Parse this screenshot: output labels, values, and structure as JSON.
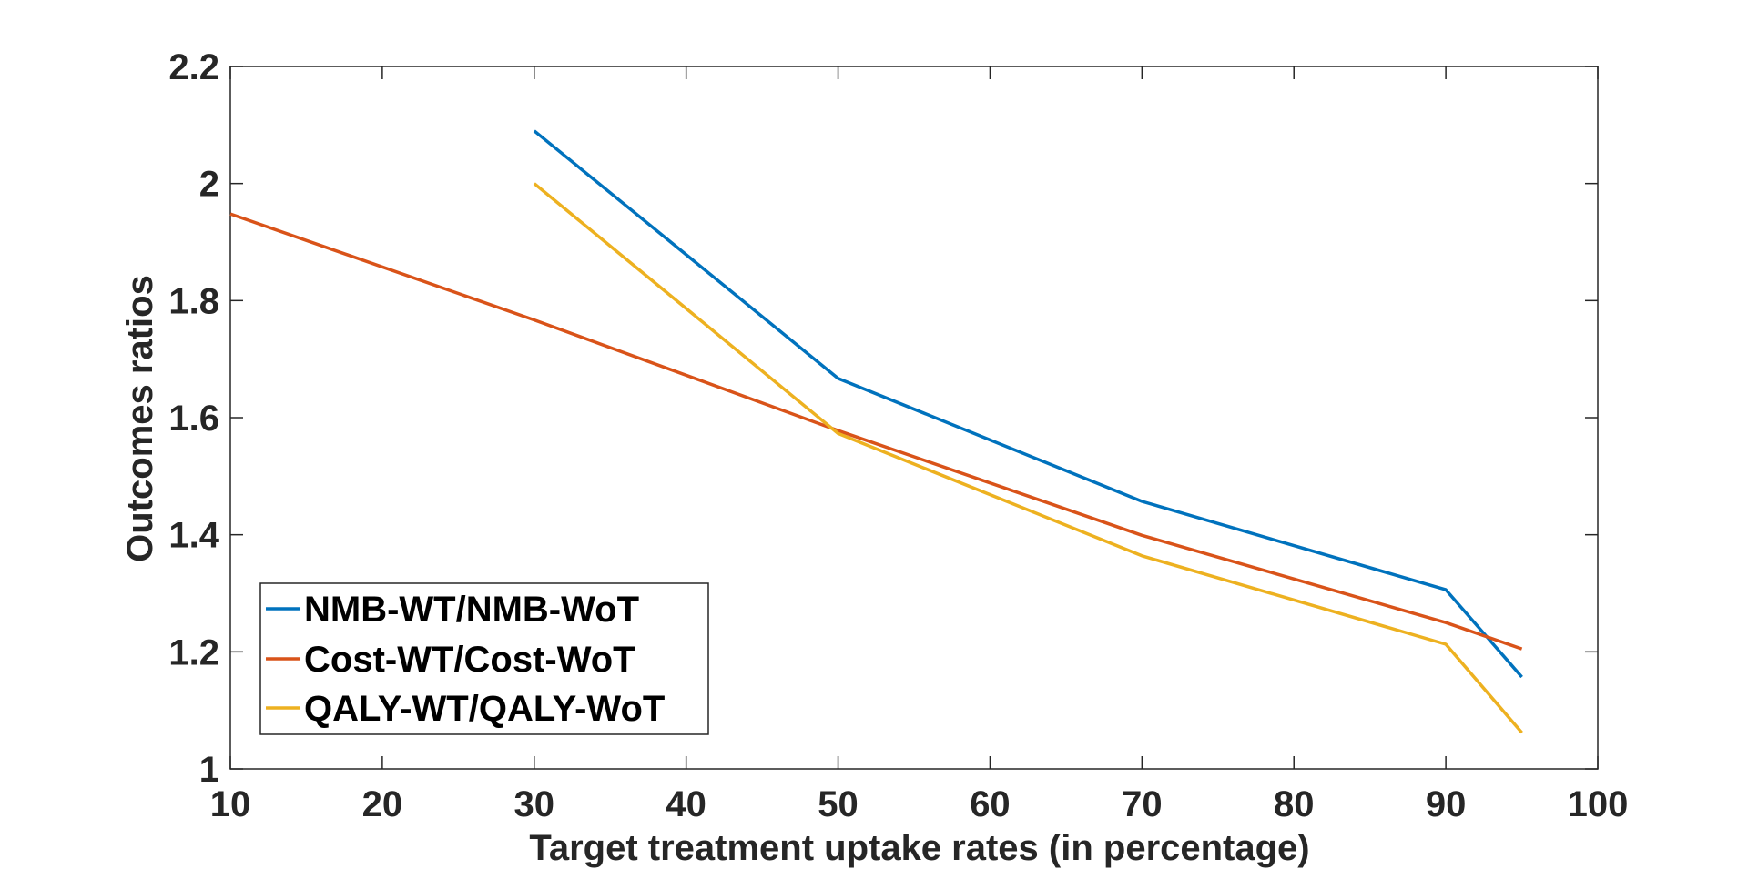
{
  "chart_data": {
    "type": "line",
    "title": "",
    "xlabel": "Target treatment uptake rates (in percentage)",
    "ylabel": "Outcomes ratios",
    "xlim": [
      10,
      100
    ],
    "ylim": [
      1,
      2.2
    ],
    "xticks": [
      10,
      20,
      30,
      40,
      50,
      60,
      70,
      80,
      90,
      100
    ],
    "xtick_labels": [
      "10",
      "20",
      "30",
      "40",
      "50",
      "60",
      "70",
      "80",
      "90",
      "100"
    ],
    "yticks": [
      1,
      1.2,
      1.4,
      1.6,
      1.8,
      2,
      2.2
    ],
    "ytick_labels": [
      "1",
      "1.2",
      "1.4",
      "1.6",
      "1.8",
      "2",
      "2.2"
    ],
    "grid": false,
    "legend_position": "bottom-left",
    "series": [
      {
        "name": "NMB-WT/NMB-WoT",
        "color": "#0072BD",
        "x": [
          30,
          50,
          70,
          90,
          95
        ],
        "y": [
          2.09,
          1.667,
          1.457,
          1.306,
          1.157
        ]
      },
      {
        "name": "Cost-WT/Cost-WoT",
        "color": "#D95319",
        "x": [
          10,
          30,
          50,
          70,
          90,
          95
        ],
        "y": [
          1.948,
          1.767,
          1.578,
          1.399,
          1.25,
          1.205
        ]
      },
      {
        "name": "QALY-WT/QALY-WoT",
        "color": "#EDB120",
        "x": [
          30,
          50,
          70,
          90,
          95
        ],
        "y": [
          2.0,
          1.573,
          1.364,
          1.213,
          1.062
        ]
      }
    ]
  }
}
